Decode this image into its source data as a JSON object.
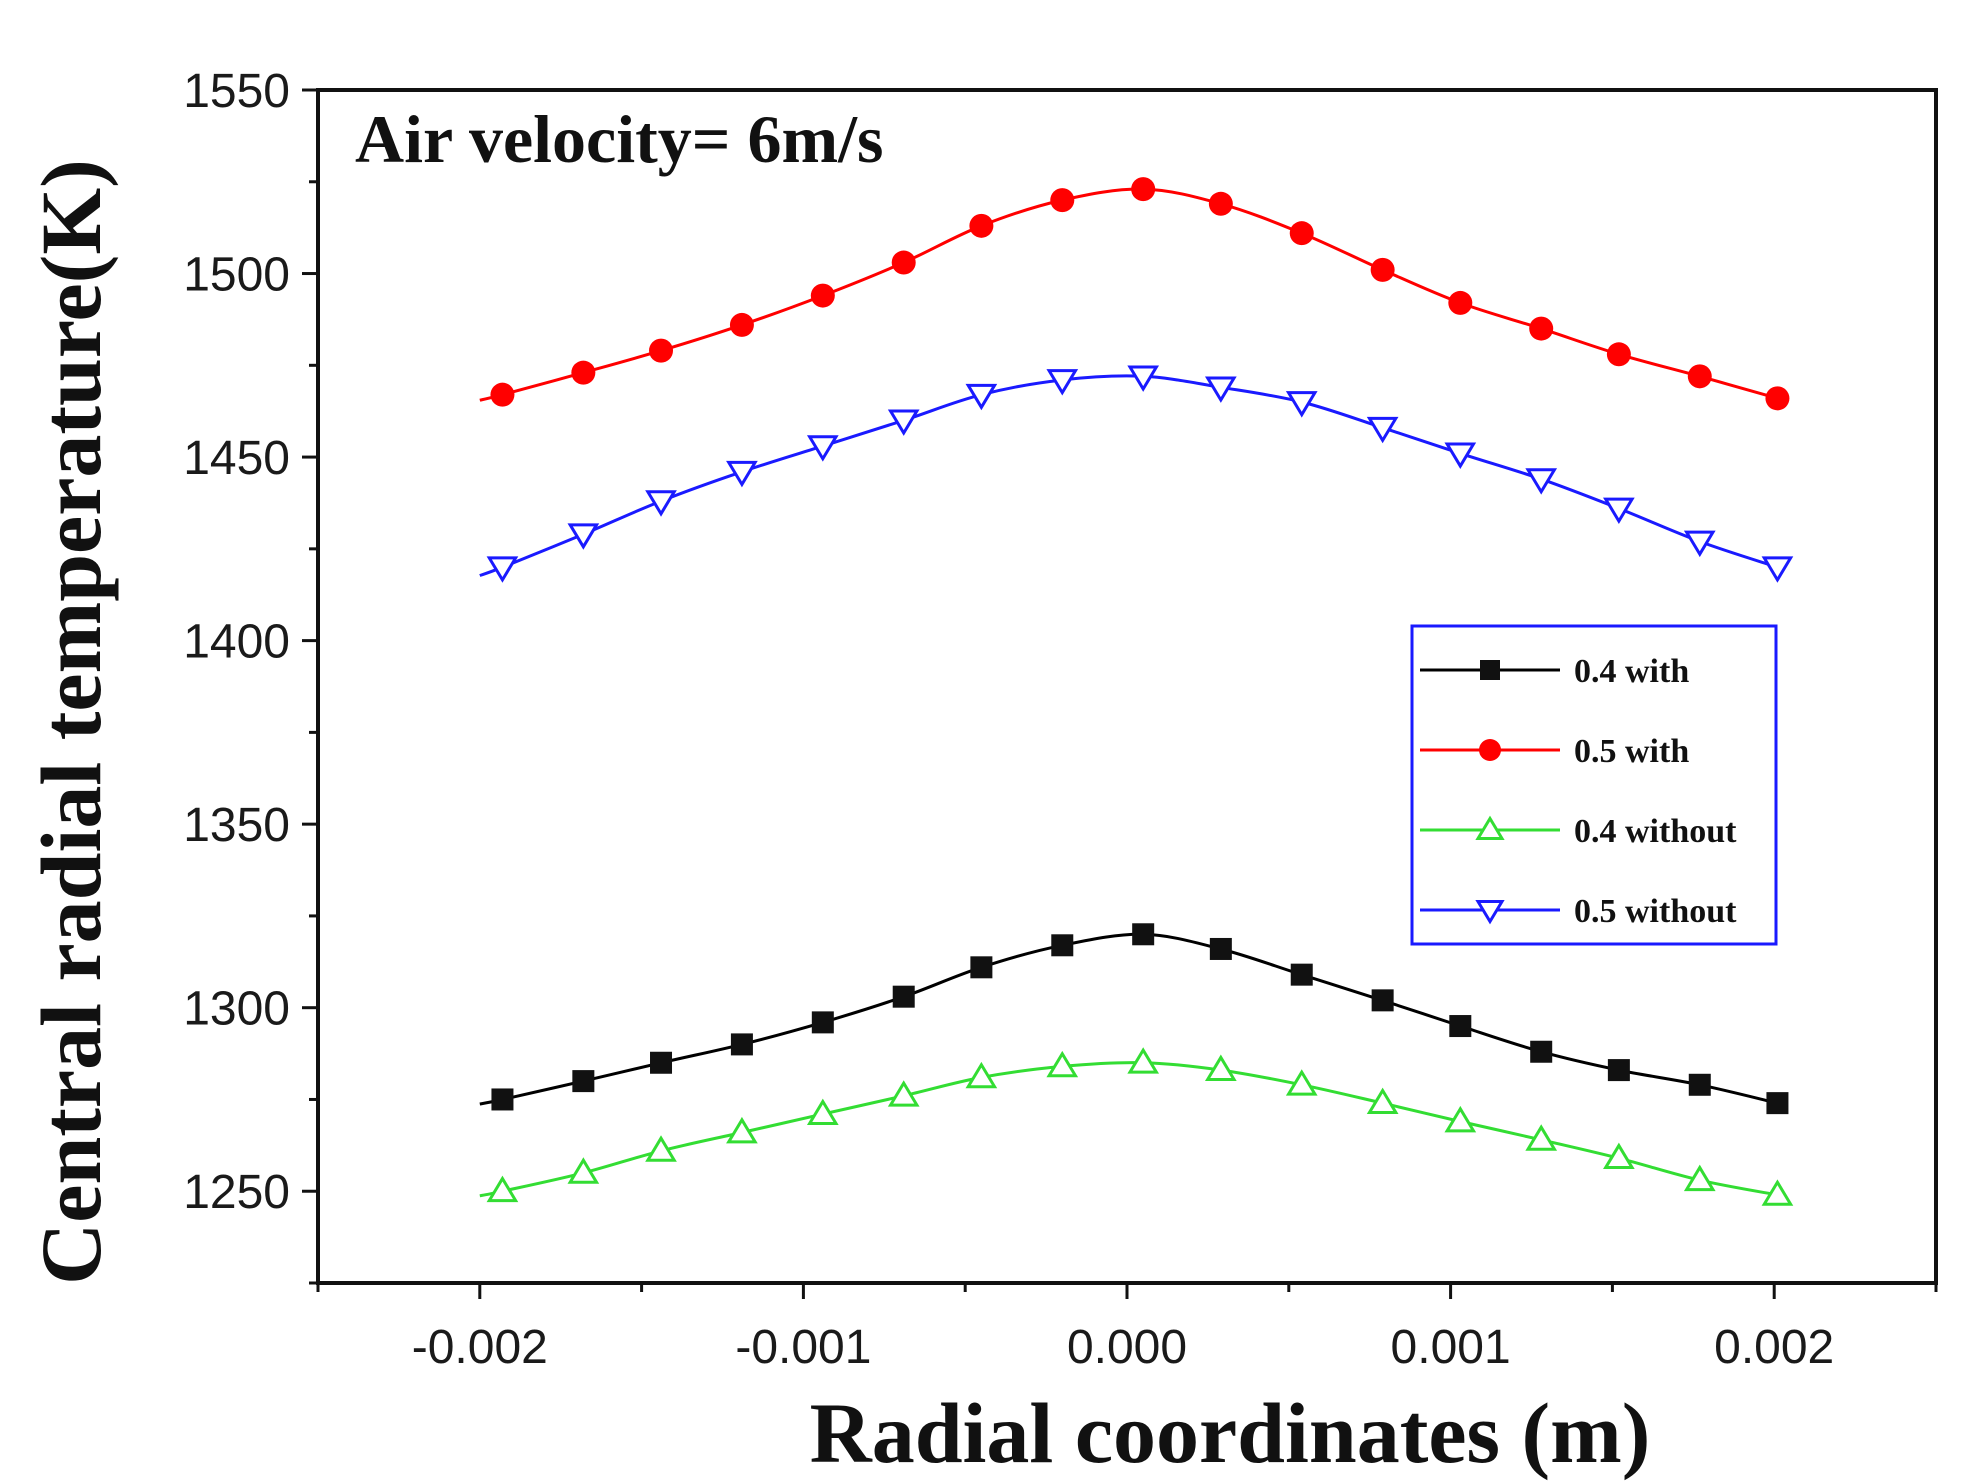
{
  "chart_data": {
    "type": "line",
    "title": "",
    "annotation": "Air velocity= 6m/s",
    "xlabel": "Radial coordinates (m)",
    "ylabel": "Central radial temperature(K)",
    "xlim": [
      -0.0025,
      0.0025
    ],
    "ylim": [
      1225,
      1550
    ],
    "xticks": [
      -0.002,
      -0.001,
      0.0,
      0.001,
      0.002
    ],
    "xtick_labels": [
      "-0.002",
      "-0.001",
      "0.000",
      "0.001",
      "0.002"
    ],
    "yticks": [
      1250,
      1300,
      1350,
      1400,
      1450,
      1500,
      1550
    ],
    "ytick_labels": [
      "1250",
      "1300",
      "1350",
      "1400",
      "1450",
      "1500",
      "1550"
    ],
    "grid": false,
    "legend_position": "right",
    "x": [
      -0.00193,
      -0.00168,
      -0.00144,
      -0.00119,
      -0.00094,
      -0.00069,
      -0.00045,
      -0.0002,
      5e-05,
      0.00029,
      0.00054,
      0.00079,
      0.00103,
      0.00128,
      0.00152,
      0.00177,
      0.00201
    ],
    "series": [
      {
        "name": "0.4 with",
        "color": "#000000",
        "marker": "square",
        "values": [
          1275,
          1280,
          1285,
          1290,
          1296,
          1303,
          1311,
          1317,
          1320,
          1316,
          1309,
          1302,
          1295,
          1288,
          1283,
          1279,
          1274
        ]
      },
      {
        "name": "0.5 with",
        "color": "#ff0000",
        "marker": "circle",
        "values": [
          1467,
          1473,
          1479,
          1486,
          1494,
          1503,
          1513,
          1520,
          1523,
          1519,
          1511,
          1501,
          1492,
          1485,
          1478,
          1472,
          1466
        ]
      },
      {
        "name": "0.4 without",
        "color": "#33dd33",
        "marker": "triangle-up",
        "values": [
          1250,
          1255,
          1261,
          1266,
          1271,
          1276,
          1281,
          1284,
          1285,
          1283,
          1279,
          1274,
          1269,
          1264,
          1259,
          1253,
          1249
        ]
      },
      {
        "name": "0.5 without",
        "color": "#1a1aff",
        "marker": "triangle-down",
        "values": [
          1420,
          1429,
          1438,
          1446,
          1453,
          1460,
          1467,
          1471,
          1472,
          1469,
          1465,
          1458,
          1451,
          1444,
          1436,
          1427,
          1420
        ]
      }
    ]
  }
}
